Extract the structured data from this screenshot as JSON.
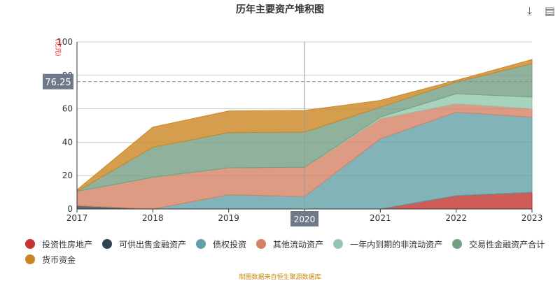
{
  "chart_data": {
    "type": "area",
    "stacked": true,
    "title": "历年主要资产堆积图",
    "ylabel": "(亿元)",
    "ylim": [
      0,
      100
    ],
    "yticks": [
      0,
      20,
      40,
      60,
      80,
      100
    ],
    "x": [
      "2017",
      "2018",
      "2019",
      "2020",
      "2021",
      "2022",
      "2023"
    ],
    "series": [
      {
        "name": "投资性房地产",
        "color": "#c23531",
        "values": [
          0,
          0,
          0,
          0,
          0,
          8,
          10
        ]
      },
      {
        "name": "可供出售金融资产",
        "color": "#2f4554",
        "values": [
          2,
          0,
          0,
          0,
          0,
          0,
          0
        ]
      },
      {
        "name": "债权投资",
        "color": "#61a0a8",
        "values": [
          0,
          0,
          8.5,
          7.5,
          42,
          50,
          45
        ]
      },
      {
        "name": "其他流动资产",
        "color": "#d48265",
        "values": [
          8.5,
          19,
          16.2,
          17.5,
          12,
          5,
          5
        ]
      },
      {
        "name": "一年内到期的非流动资产",
        "color": "#91c7ae",
        "values": [
          0,
          0,
          0,
          0,
          1,
          6,
          7
        ]
      },
      {
        "name": "交易性金融资产合计",
        "color": "#749f83",
        "values": [
          0,
          18,
          21,
          21,
          6,
          7,
          20
        ]
      },
      {
        "name": "货币资金",
        "color": "#ca8622",
        "values": [
          1,
          12,
          13,
          13,
          4,
          1,
          2.5
        ]
      }
    ],
    "crosshair": {
      "x": "2020",
      "y_label": "76.25",
      "y": 76.25
    },
    "grid": true,
    "legend": "bottom"
  },
  "source": "制图数据来自恒生聚源数据库",
  "icons": {
    "download": "download-icon",
    "data_view": "document-icon"
  }
}
